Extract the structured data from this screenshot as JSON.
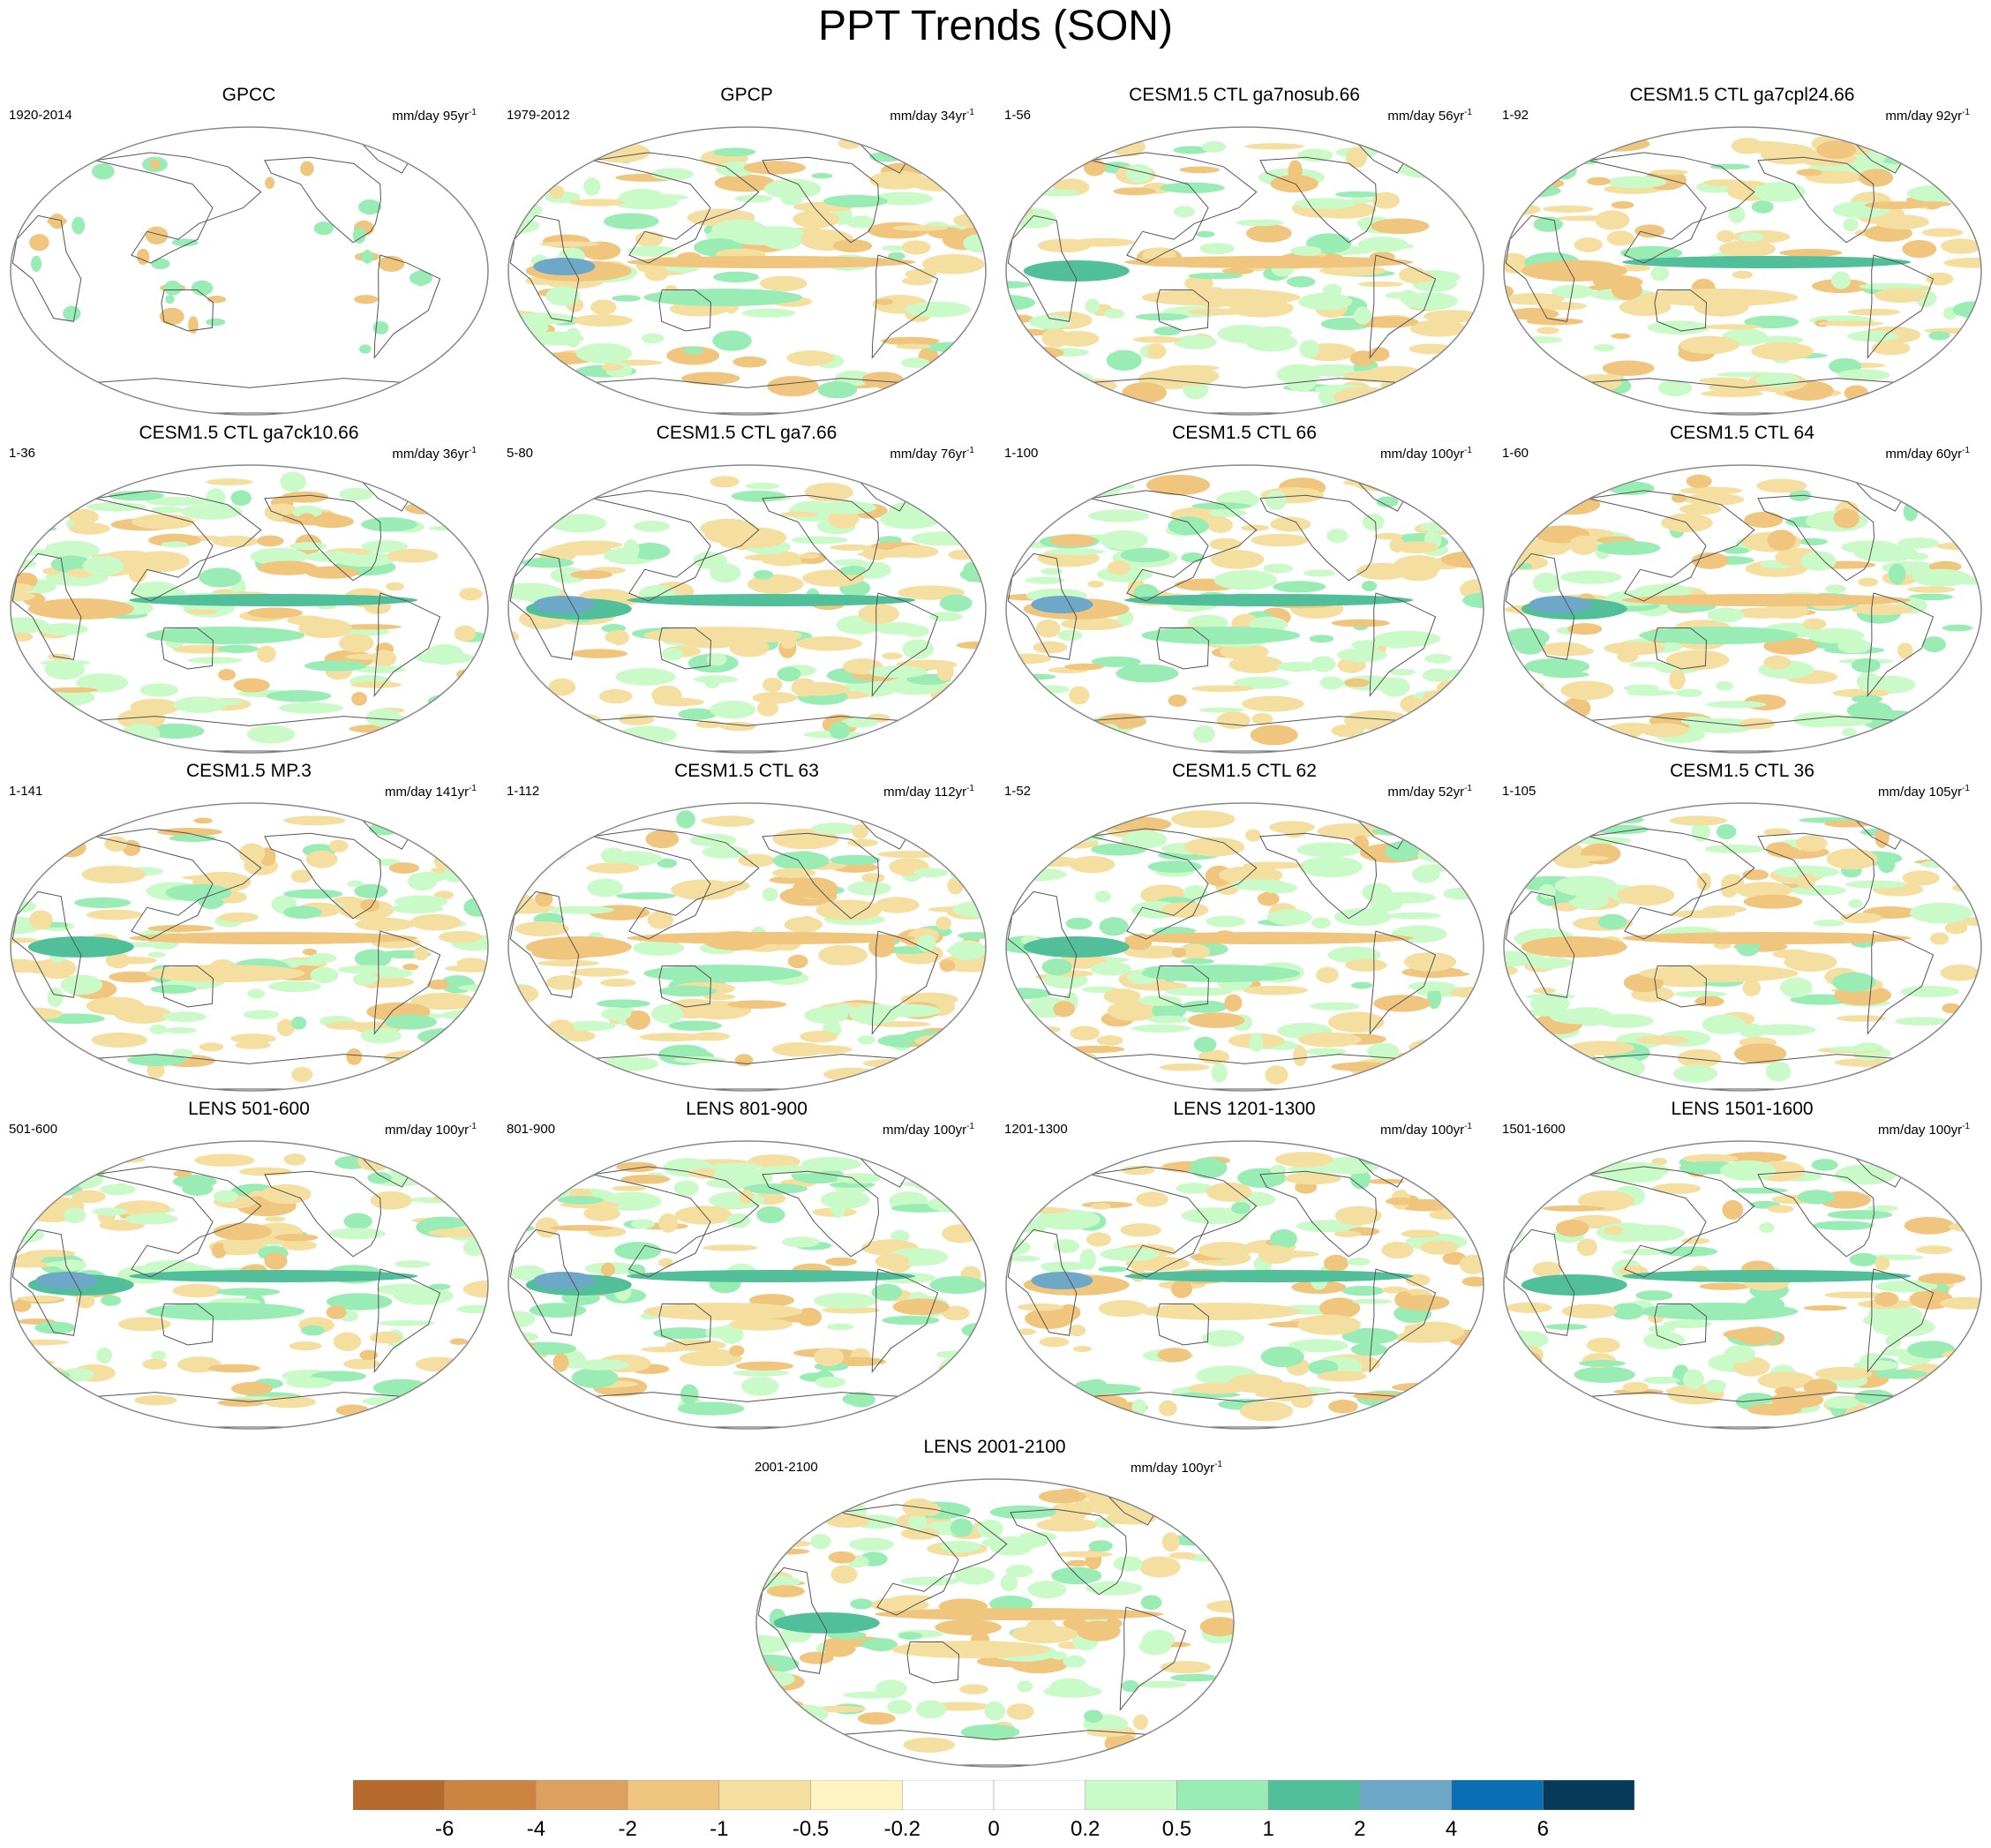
{
  "title": "PPT Trends (SON)",
  "panels": [
    {
      "title": "GPCC",
      "years": "1920-2014",
      "units": "mm/day 95yr",
      "trend_style": "gpcc"
    },
    {
      "title": "GPCP",
      "years": "1979-2012",
      "units": "mm/day 34yr",
      "trend_style": "gpcp"
    },
    {
      "title": "CESM1.5 CTL ga7nosub.66",
      "years": "1-56",
      "units": "mm/day 56yr",
      "trend_style": "model"
    },
    {
      "title": "CESM1.5 CTL ga7cpl24.66",
      "years": "1-92",
      "units": "mm/day 92yr",
      "trend_style": "model"
    },
    {
      "title": "CESM1.5 CTL ga7ck10.66",
      "years": "1-36",
      "units": "mm/day 36yr",
      "trend_style": "model"
    },
    {
      "title": "CESM1.5 CTL ga7.66",
      "years": "5-80",
      "units": "mm/day 76yr",
      "trend_style": "model"
    },
    {
      "title": "CESM1.5 CTL 66",
      "years": "1-100",
      "units": "mm/day 100yr",
      "trend_style": "model"
    },
    {
      "title": "CESM1.5 CTL 64",
      "years": "1-60",
      "units": "mm/day 60yr",
      "trend_style": "model"
    },
    {
      "title": "CESM1.5 MP.3",
      "years": "1-141",
      "units": "mm/day 141yr",
      "trend_style": "model"
    },
    {
      "title": "CESM1.5 CTL 63",
      "years": "1-112",
      "units": "mm/day 112yr",
      "trend_style": "model"
    },
    {
      "title": "CESM1.5 CTL 62",
      "years": "1-52",
      "units": "mm/day 52yr",
      "trend_style": "model"
    },
    {
      "title": "CESM1.5 CTL 36",
      "years": "1-105",
      "units": "mm/day 105yr",
      "trend_style": "model"
    },
    {
      "title": "LENS 501-600",
      "years": "501-600",
      "units": "mm/day 100yr",
      "trend_style": "model"
    },
    {
      "title": "LENS 801-900",
      "years": "801-900",
      "units": "mm/day 100yr",
      "trend_style": "model"
    },
    {
      "title": "LENS 1201-1300",
      "years": "1201-1300",
      "units": "mm/day 100yr",
      "trend_style": "model"
    },
    {
      "title": "LENS 1501-1600",
      "years": "1501-1600",
      "units": "mm/day 100yr",
      "trend_style": "model"
    },
    {
      "title": "LENS 2001-2100",
      "years": "2001-2100",
      "units": "mm/day 100yr",
      "trend_style": "model"
    }
  ],
  "units_exponent": "-1",
  "colorbar": {
    "labels": [
      "-6",
      "-4",
      "-2",
      "-1",
      "-0.5",
      "-0.2",
      "0",
      "0.2",
      "0.5",
      "1",
      "2",
      "4",
      "6"
    ],
    "colors": [
      "#b5692b",
      "#cc8440",
      "#dda05d",
      "#f0c57e",
      "#f4dfa0",
      "#fdf3c3",
      "#ffffff",
      "#ffffff",
      "#cafac8",
      "#98ecb4",
      "#52bf9b",
      "#6ea8c9",
      "#0a6eb4",
      "#053a5a"
    ]
  },
  "palette": {
    "dry_strong": "#cc8440",
    "dry": "#f0c57e",
    "dry_light": "#f4dfa0",
    "wet_light": "#cafac8",
    "wet": "#98ecb4",
    "wet_mid": "#52bf9b",
    "wet_strong": "#6ea8c9",
    "wet_max": "#0a6eb4",
    "coast": "#555555",
    "border": "#888888"
  }
}
